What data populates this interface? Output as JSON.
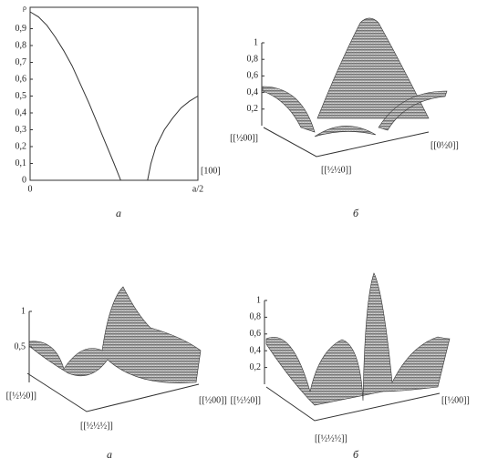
{
  "chart_data": [
    {
      "type": "line",
      "ylabel": "ρ",
      "xlabel": "[100]",
      "caption": "а",
      "color": "#333333",
      "x": [
        0,
        0.05,
        0.1,
        0.15,
        0.2,
        0.25,
        0.3,
        0.35,
        0.4,
        0.45,
        0.5,
        0.54,
        0.6,
        0.65,
        0.7,
        0.72,
        0.75,
        0.8,
        0.85,
        0.9,
        0.95,
        1
      ],
      "values": [
        1.0,
        0.97,
        0.92,
        0.85,
        0.77,
        0.68,
        0.57,
        0.46,
        0.34,
        0.22,
        0.1,
        0,
        0,
        0,
        0,
        0.1,
        0.2,
        0.3,
        0.37,
        0.43,
        0.47,
        0.5
      ],
      "xlim": [
        0,
        1
      ],
      "ylim": [
        0,
        1
      ],
      "xticks": [
        0,
        {
          "value": 1,
          "label": "a/2"
        }
      ],
      "yticks": [
        0,
        {
          "value": 0.1,
          "label": "0,1"
        },
        {
          "value": 0.2,
          "label": "0,2"
        },
        {
          "value": 0.3,
          "label": "0,3"
        },
        {
          "value": 0.4,
          "label": "0,4"
        },
        {
          "value": 0.5,
          "label": "0,5"
        },
        {
          "value": 0.6,
          "label": "0,6"
        },
        {
          "value": 0.7,
          "label": "0,7"
        },
        {
          "value": 0.8,
          "label": "0,8"
        },
        {
          "value": 0.9,
          "label": "0,9"
        }
      ]
    },
    {
      "type": "surface",
      "caption": "б",
      "axis_labels": [
        "[[½00]]",
        "[[½½0]]",
        "[[0½0]]"
      ],
      "zlim": [
        0,
        1
      ],
      "zticks": [
        {
          "value": 0.2,
          "label": "0,2"
        },
        {
          "value": 0.4,
          "label": "0,4"
        },
        {
          "value": 0.6,
          "label": "0,6"
        },
        {
          "value": 0.8,
          "label": "0,8"
        },
        1
      ]
    },
    {
      "type": "surface",
      "caption": "а",
      "axis_labels": [
        "[[½½0]]",
        "[[½½½]]",
        "[[½00]]"
      ],
      "zlim": [
        0,
        1
      ],
      "zticks": [
        {
          "value": 0.5,
          "label": "0,5"
        },
        1
      ]
    },
    {
      "type": "surface",
      "caption": "б",
      "axis_labels": [
        "[[½½0]]",
        "[[½½½]]",
        "[[½00]]"
      ],
      "zlim": [
        0,
        1
      ],
      "zticks": [
        {
          "value": 0.2,
          "label": "0,2"
        },
        {
          "value": 0.4,
          "label": "0,4"
        },
        {
          "value": 0.6,
          "label": "0,6"
        },
        {
          "value": 0.8,
          "label": "0,8"
        },
        1
      ]
    }
  ]
}
